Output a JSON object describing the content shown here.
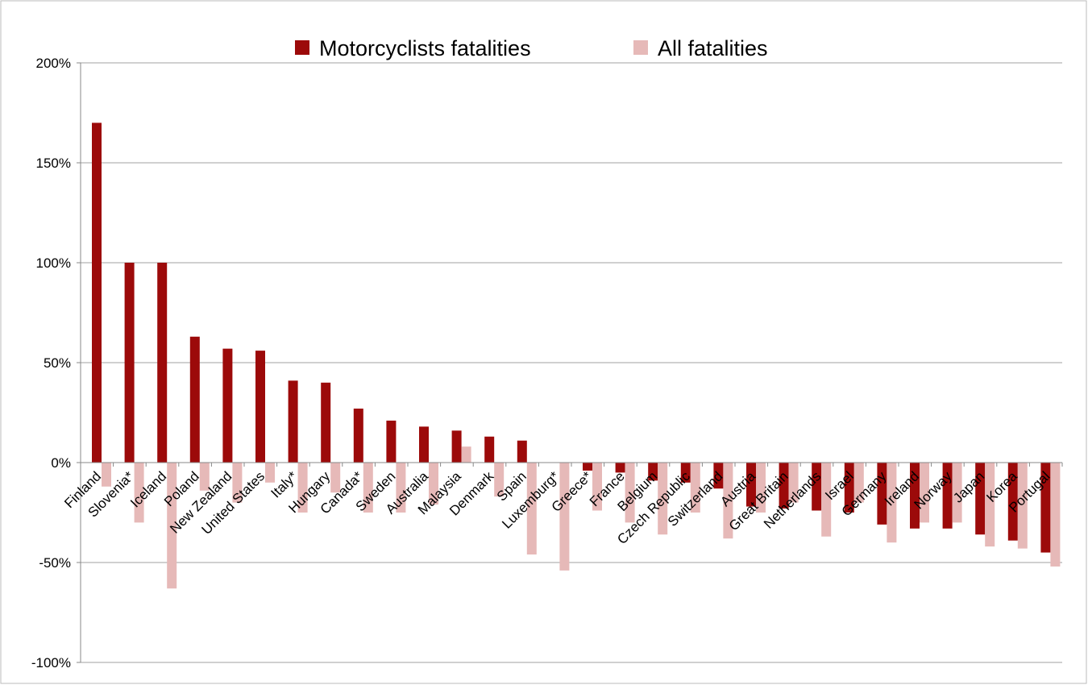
{
  "chart_data": {
    "type": "bar",
    "categories": [
      "Finland",
      "Slovenia*",
      "Iceland",
      "Poland",
      "New Zealand",
      "United States",
      "Italy*",
      "Hungary",
      "Canada*",
      "Sweden",
      "Australia",
      "Malaysia",
      "Denmark",
      "Spain",
      "Luxemburg*",
      "Greece*",
      "France",
      "Belgium",
      "Czech Republic",
      "Switzerland",
      "Austria",
      "Great Britain",
      "Netherlands",
      "Israel",
      "Germany",
      "Ireland",
      "Norway",
      "Japan",
      "Korea",
      "Portugal"
    ],
    "series": [
      {
        "name": "Motorcyclists fatalities",
        "color": "#9c0a0a",
        "values": [
          170,
          100,
          100,
          63,
          57,
          56,
          41,
          40,
          27,
          21,
          18,
          16,
          13,
          11,
          0,
          -4,
          -5,
          -9,
          -10,
          -13,
          -22,
          -23,
          -24,
          -25,
          -31,
          -33,
          -33,
          -36,
          -39,
          -45
        ]
      },
      {
        "name": "All fatalities",
        "color": "#e6b9b8",
        "values": [
          -12,
          -30,
          -63,
          -14,
          -20,
          -10,
          -25,
          -15,
          -25,
          -25,
          -21,
          8,
          -17,
          -46,
          -54,
          -24,
          -30,
          -36,
          -25,
          -38,
          -25,
          -20,
          -37,
          -20,
          -40,
          -30,
          -30,
          -42,
          -43,
          -52
        ]
      }
    ],
    "ylim": [
      -100,
      200
    ],
    "yticks": [
      {
        "value": -100,
        "label": "-100%"
      },
      {
        "value": -50,
        "label": "-50%"
      },
      {
        "value": 0,
        "label": "0%"
      },
      {
        "value": 50,
        "label": "50%"
      },
      {
        "value": 100,
        "label": "100%"
      },
      {
        "value": 150,
        "label": "150%"
      },
      {
        "value": 200,
        "label": "200%"
      }
    ],
    "grid": true,
    "legend": "top"
  }
}
